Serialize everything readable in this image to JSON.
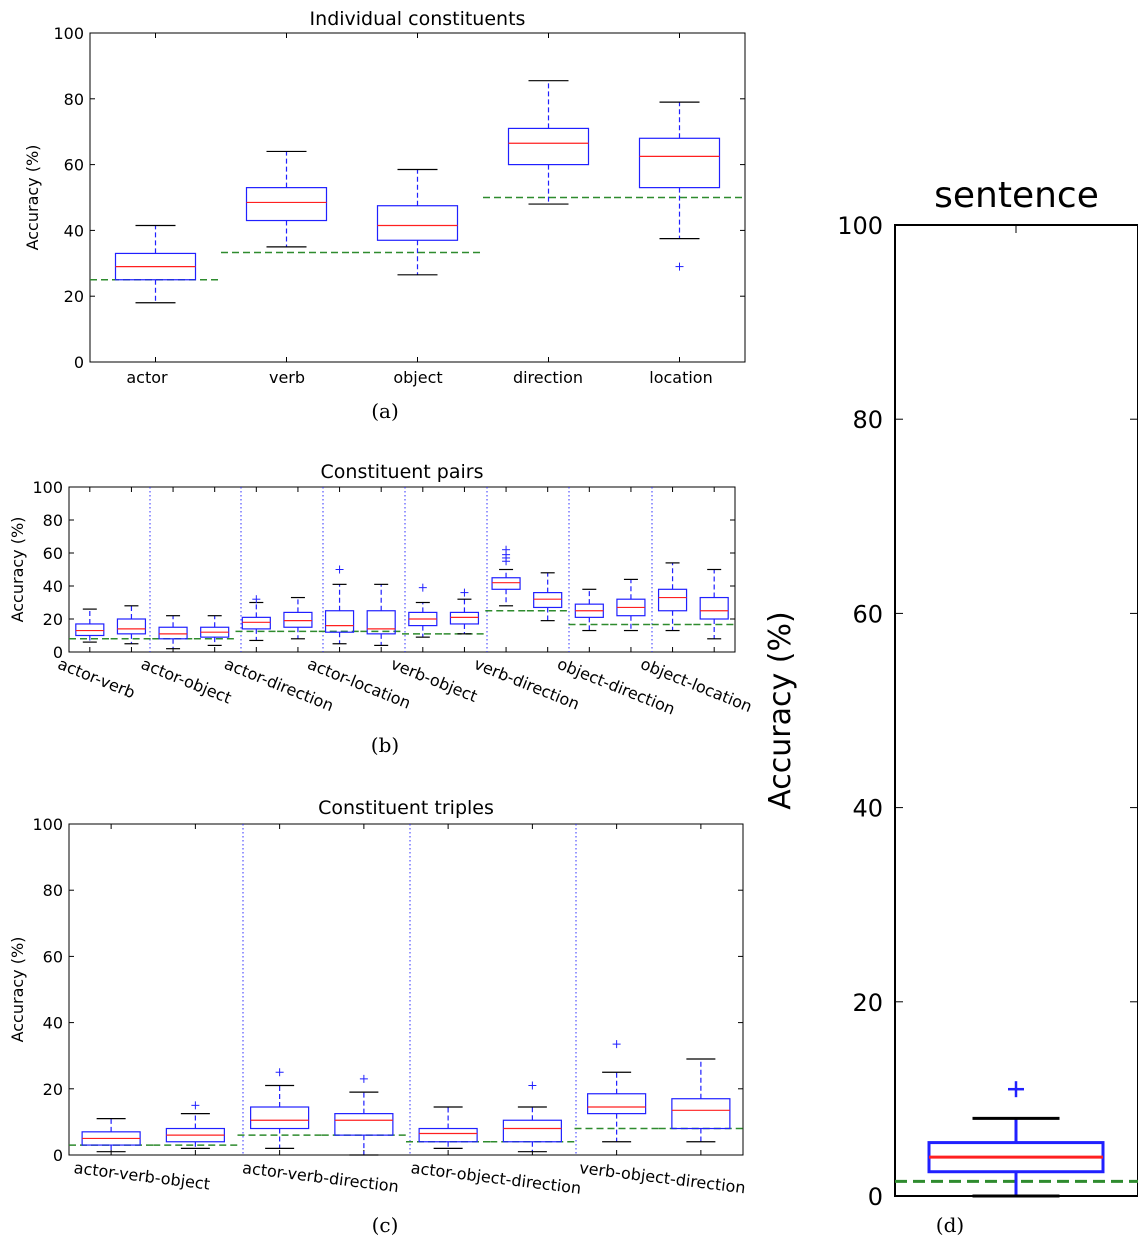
{
  "chart_data": [
    {
      "type": "box",
      "panel": "a",
      "title": "Individual constituents",
      "caption": "(a)",
      "ylabel": "Accuracy (%)",
      "ylim": [
        0,
        100
      ],
      "yticks": [
        0,
        20,
        40,
        60,
        80,
        100
      ],
      "categories": [
        "actor",
        "verb",
        "object",
        "direction",
        "location"
      ],
      "boxes": [
        {
          "min": 18,
          "q1": 25,
          "median": 29,
          "q3": 33,
          "max": 41.5,
          "outliers": []
        },
        {
          "min": 35,
          "q1": 43,
          "median": 48.5,
          "q3": 53,
          "max": 64,
          "outliers": []
        },
        {
          "min": 26.5,
          "q1": 37,
          "median": 41.5,
          "q3": 47.5,
          "max": 58.5,
          "outliers": []
        },
        {
          "min": 48,
          "q1": 60,
          "median": 66.5,
          "q3": 71,
          "max": 85.5,
          "outliers": []
        },
        {
          "min": 37.5,
          "q1": 53,
          "median": 62.5,
          "q3": 68,
          "max": 79,
          "outliers": [
            29
          ]
        }
      ],
      "chance": [
        25,
        33.3,
        33.3,
        50,
        50
      ]
    },
    {
      "type": "box",
      "panel": "b",
      "title": "Constituent pairs",
      "caption": "(b)",
      "ylabel": "Accuracy (%)",
      "ylim": [
        0,
        100
      ],
      "yticks": [
        0,
        20,
        40,
        60,
        80,
        100
      ],
      "categories": [
        "actor-verb",
        "actor-object",
        "actor-direction",
        "actor-location",
        "verb-object",
        "verb-direction",
        "object-direction",
        "object-location"
      ],
      "boxes": [
        {
          "min": 6,
          "q1": 10,
          "median": 13,
          "q3": 17,
          "max": 26,
          "outliers": []
        },
        {
          "min": 5,
          "q1": 11,
          "median": 14,
          "q3": 20,
          "max": 28,
          "outliers": []
        },
        {
          "min": 2,
          "q1": 8,
          "median": 11,
          "q3": 15,
          "max": 22,
          "outliers": []
        },
        {
          "min": 4,
          "q1": 9,
          "median": 12,
          "q3": 15,
          "max": 22,
          "outliers": []
        },
        {
          "min": 7,
          "q1": 14,
          "median": 18,
          "q3": 21,
          "max": 30,
          "outliers": [
            32
          ]
        },
        {
          "min": 8,
          "q1": 15,
          "median": 19,
          "q3": 24,
          "max": 33,
          "outliers": []
        },
        {
          "min": 5,
          "q1": 12,
          "median": 16,
          "q3": 25,
          "max": 41,
          "outliers": [
            50
          ]
        },
        {
          "min": 4,
          "q1": 11,
          "median": 14,
          "q3": 25,
          "max": 41,
          "outliers": []
        },
        {
          "min": 9,
          "q1": 16,
          "median": 20,
          "q3": 24,
          "max": 30,
          "outliers": [
            39
          ]
        },
        {
          "min": 11,
          "q1": 17,
          "median": 21,
          "q3": 24,
          "max": 32,
          "outliers": [
            36
          ]
        },
        {
          "min": 28,
          "q1": 38,
          "median": 42,
          "q3": 45,
          "max": 50,
          "outliers": [
            55,
            57,
            59,
            62
          ]
        },
        {
          "min": 19,
          "q1": 27,
          "median": 32,
          "q3": 36,
          "max": 48,
          "outliers": []
        },
        {
          "min": 13,
          "q1": 21,
          "median": 25,
          "q3": 29,
          "max": 38,
          "outliers": []
        },
        {
          "min": 13,
          "q1": 22,
          "median": 27,
          "q3": 32,
          "max": 44,
          "outliers": []
        },
        {
          "min": 13,
          "q1": 25,
          "median": 33,
          "q3": 38,
          "max": 54,
          "outliers": []
        },
        {
          "min": 8,
          "q1": 20,
          "median": 25,
          "q3": 33,
          "max": 50,
          "outliers": []
        }
      ],
      "chance": [
        8,
        8,
        8,
        8,
        12.5,
        12.5,
        12.5,
        12.5,
        11,
        11,
        25,
        25,
        16.7,
        16.7,
        16.7,
        16.7
      ]
    },
    {
      "type": "box",
      "panel": "c",
      "title": "Constituent triples",
      "caption": "(c)",
      "ylabel": "Accuracy (%)",
      "ylim": [
        0,
        100
      ],
      "yticks": [
        0,
        20,
        40,
        60,
        80,
        100
      ],
      "categories": [
        "actor-verb-object",
        "actor-verb-direction",
        "actor-object-direction",
        "verb-object-direction"
      ],
      "boxes": [
        {
          "min": 1,
          "q1": 3,
          "median": 5,
          "q3": 7,
          "max": 11,
          "outliers": []
        },
        {
          "min": 2,
          "q1": 4,
          "median": 6,
          "q3": 8,
          "max": 12.5,
          "outliers": [
            15
          ]
        },
        {
          "min": 2,
          "q1": 8,
          "median": 10.5,
          "q3": 14.5,
          "max": 21,
          "outliers": [
            25
          ]
        },
        {
          "min": 0,
          "q1": 6,
          "median": 10.5,
          "q3": 12.5,
          "max": 19,
          "outliers": [
            23
          ]
        },
        {
          "min": 2,
          "q1": 4,
          "median": 6.5,
          "q3": 8,
          "max": 14.5,
          "outliers": []
        },
        {
          "min": 1,
          "q1": 4,
          "median": 8,
          "q3": 10.5,
          "max": 14.5,
          "outliers": [
            21
          ]
        },
        {
          "min": 4,
          "q1": 12.5,
          "median": 14.5,
          "q3": 18.5,
          "max": 25,
          "outliers": [
            33.5
          ]
        },
        {
          "min": 4,
          "q1": 8,
          "median": 13.5,
          "q3": 17,
          "max": 29,
          "outliers": []
        }
      ],
      "chance": [
        3,
        3,
        6,
        6,
        4,
        4,
        8,
        8
      ]
    },
    {
      "type": "box",
      "panel": "d",
      "title": "sentence",
      "caption": "(d)",
      "ylabel": "Accuracy (%)",
      "ylim": [
        0,
        100
      ],
      "yticks": [
        0,
        20,
        40,
        60,
        80,
        100
      ],
      "boxes": [
        {
          "min": 0,
          "q1": 2.5,
          "median": 4,
          "q3": 5.5,
          "max": 8,
          "outliers": [
            11
          ]
        }
      ],
      "chance": [
        1.5
      ]
    }
  ]
}
